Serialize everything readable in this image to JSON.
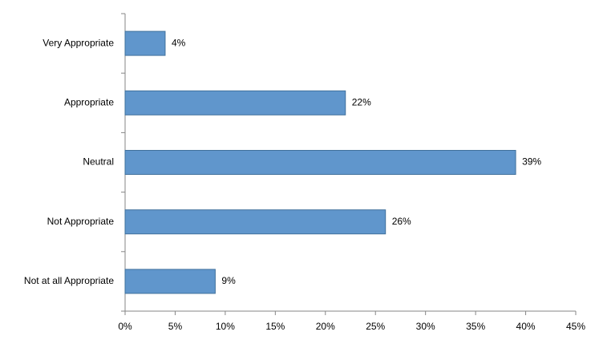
{
  "chart_data": {
    "type": "bar",
    "orientation": "horizontal",
    "categories": [
      "Very Appropriate",
      "Appropriate",
      "Neutral",
      "Not Appropriate",
      "Not at all Appropriate"
    ],
    "values": [
      4,
      22,
      39,
      26,
      9
    ],
    "value_labels": [
      "4%",
      "22%",
      "39%",
      "26%",
      "9%"
    ],
    "color": "#6096cc",
    "xlim": [
      0,
      45
    ],
    "xticks": [
      {
        "value": 0,
        "label": "0%"
      },
      {
        "value": 5,
        "label": "5%"
      },
      {
        "value": 10,
        "label": "10%"
      },
      {
        "value": 15,
        "label": "15%"
      },
      {
        "value": 20,
        "label": "20%"
      },
      {
        "value": 25,
        "label": "25%"
      },
      {
        "value": 30,
        "label": "30%"
      },
      {
        "value": 35,
        "label": "35%"
      },
      {
        "value": 40,
        "label": "40%"
      },
      {
        "value": 45,
        "label": "45%"
      }
    ],
    "grid": false
  }
}
